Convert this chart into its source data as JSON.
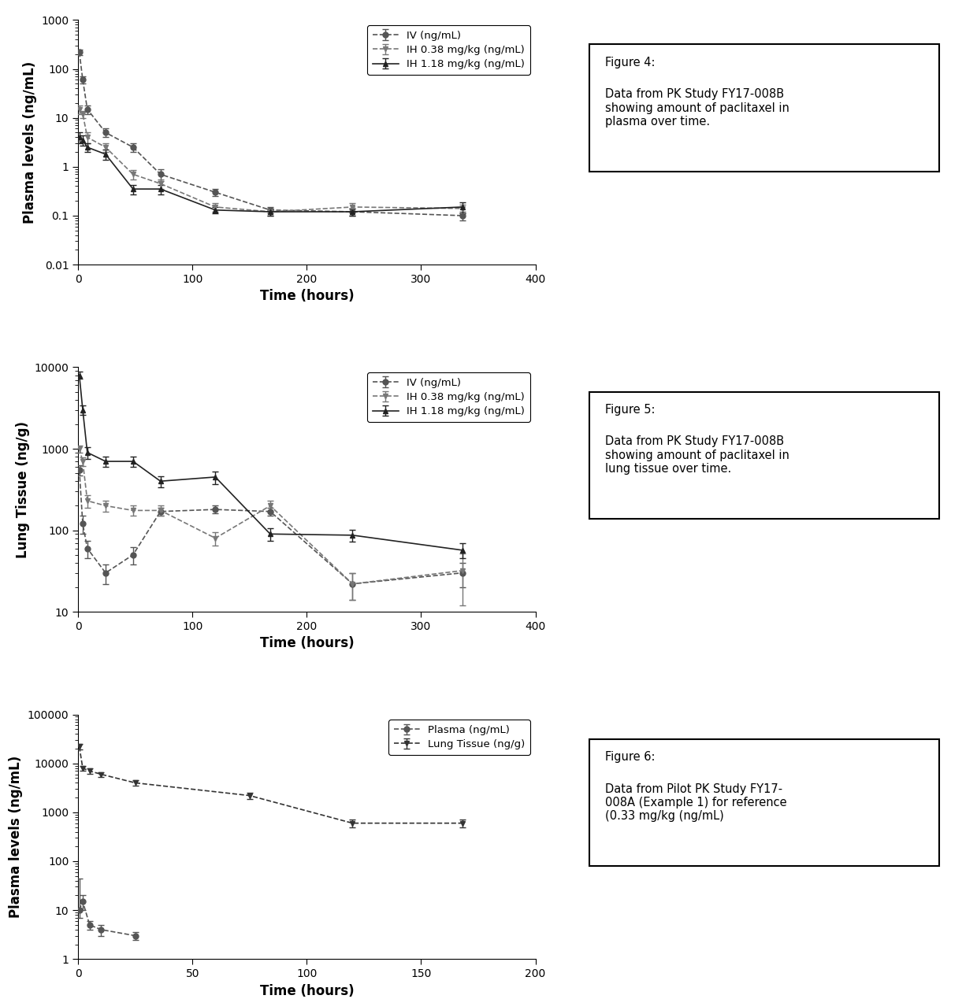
{
  "fig1": {
    "ylabel": "Plasma levels (ng/mL)",
    "xlabel": "Time (hours)",
    "ylim_log": [
      0.01,
      1000
    ],
    "xlim": [
      0,
      400
    ],
    "yticks": [
      0.01,
      0.1,
      1,
      10,
      100,
      1000
    ],
    "ytick_labels": [
      "0.01",
      "0.1",
      "1",
      "10",
      "100",
      "1000"
    ],
    "xticks": [
      0,
      100,
      200,
      300,
      400
    ],
    "series": [
      {
        "label": "IV (ng/mL)",
        "marker": "o",
        "color": "#555555",
        "linestyle": "--",
        "x": [
          1,
          4,
          8,
          24,
          48,
          72,
          120,
          168,
          240,
          336
        ],
        "y": [
          220,
          60,
          15,
          5,
          2.5,
          0.7,
          0.3,
          0.13,
          0.12,
          0.1
        ],
        "yerr_low": [
          30,
          10,
          3,
          1,
          0.5,
          0.2,
          0.05,
          0.02,
          0.02,
          0.02
        ],
        "yerr_high": [
          30,
          10,
          3,
          1,
          0.5,
          0.2,
          0.05,
          0.02,
          0.02,
          0.02
        ]
      },
      {
        "label": "IH 0.38 mg/kg (ng/mL)",
        "marker": "v",
        "color": "#777777",
        "linestyle": "--",
        "x": [
          1,
          4,
          8,
          24,
          48,
          72,
          120,
          168,
          240,
          336
        ],
        "y": [
          15,
          12,
          4,
          2.5,
          0.7,
          0.45,
          0.15,
          0.12,
          0.15,
          0.14
        ],
        "yerr_low": [
          3,
          2,
          1,
          0.5,
          0.15,
          0.1,
          0.03,
          0.02,
          0.03,
          0.03
        ],
        "yerr_high": [
          3,
          2,
          1,
          0.5,
          0.15,
          0.1,
          0.03,
          0.02,
          0.03,
          0.03
        ]
      },
      {
        "label": "IH 1.18 mg/kg (ng/mL)",
        "marker": "^",
        "color": "#222222",
        "linestyle": "-",
        "x": [
          1,
          4,
          8,
          24,
          48,
          72,
          120,
          168,
          240,
          336
        ],
        "y": [
          4,
          3.5,
          2.5,
          1.8,
          0.35,
          0.35,
          0.13,
          0.12,
          0.12,
          0.15
        ],
        "yerr_low": [
          1,
          0.8,
          0.5,
          0.4,
          0.08,
          0.08,
          0.02,
          0.02,
          0.02,
          0.04
        ],
        "yerr_high": [
          1,
          0.8,
          0.5,
          0.4,
          0.08,
          0.08,
          0.02,
          0.02,
          0.02,
          0.04
        ]
      }
    ],
    "caption_title": "Figure 4:",
    "caption_text": "Data from PK Study FY17-008B\nshowing amount of paclitaxel in\nplasma over time."
  },
  "fig2": {
    "ylabel": "Lung Tissue (ng/g)",
    "xlabel": "Time (hours)",
    "ylim_log": [
      10,
      10000
    ],
    "xlim": [
      0,
      400
    ],
    "yticks": [
      10,
      100,
      1000,
      10000
    ],
    "ytick_labels": [
      "10",
      "100",
      "1000",
      "10000"
    ],
    "xticks": [
      0,
      100,
      200,
      300,
      400
    ],
    "series": [
      {
        "label": "IV (ng/mL)",
        "marker": "o",
        "color": "#555555",
        "linestyle": "--",
        "x": [
          1,
          4,
          8,
          24,
          48,
          72,
          120,
          168,
          240,
          336
        ],
        "y": [
          550,
          120,
          60,
          30,
          50,
          170,
          180,
          170,
          22,
          30
        ],
        "yerr_low": [
          80,
          30,
          15,
          8,
          12,
          20,
          20,
          20,
          8,
          10
        ],
        "yerr_high": [
          80,
          30,
          15,
          8,
          12,
          20,
          20,
          20,
          8,
          10
        ]
      },
      {
        "label": "IH 0.38 mg/kg (ng/mL)",
        "marker": "v",
        "color": "#777777",
        "linestyle": "--",
        "x": [
          1,
          4,
          8,
          24,
          48,
          72,
          120,
          168,
          240,
          336
        ],
        "y": [
          1000,
          700,
          230,
          200,
          175,
          175,
          80,
          200,
          22,
          32
        ],
        "yerr_low": [
          100,
          80,
          40,
          30,
          25,
          25,
          15,
          30,
          8,
          20
        ],
        "yerr_high": [
          100,
          80,
          40,
          30,
          25,
          25,
          15,
          30,
          8,
          20
        ]
      },
      {
        "label": "IH 1.18 mg/kg (ng/mL)",
        "marker": "^",
        "color": "#222222",
        "linestyle": "-",
        "x": [
          1,
          4,
          8,
          24,
          48,
          72,
          120,
          168,
          240,
          336
        ],
        "y": [
          8000,
          3000,
          900,
          700,
          700,
          400,
          450,
          90,
          87,
          57
        ],
        "yerr_low": [
          800,
          400,
          150,
          100,
          100,
          60,
          80,
          15,
          15,
          12
        ],
        "yerr_high": [
          800,
          400,
          150,
          100,
          100,
          60,
          80,
          15,
          15,
          12
        ]
      }
    ],
    "caption_title": "Figure 5:",
    "caption_text": "Data from PK Study FY17-008B\nshowing amount of paclitaxel in\nlung tissue over time."
  },
  "fig3": {
    "ylabel": "Plasma levels (ng/mL)",
    "xlabel": "Time (hours)",
    "ylim_log": [
      1,
      100000
    ],
    "xlim": [
      0,
      200
    ],
    "yticks": [
      1,
      10,
      100,
      1000,
      10000,
      100000
    ],
    "ytick_labels": [
      "1",
      "10",
      "100",
      "1000",
      "10000",
      "100000"
    ],
    "xticks": [
      0,
      50,
      100,
      150,
      200
    ],
    "series": [
      {
        "label": "Plasma (ng/mL)",
        "marker": "o",
        "color": "#555555",
        "linestyle": "--",
        "x": [
          0.5,
          2,
          5,
          10,
          25
        ],
        "y": [
          10,
          15,
          5,
          4,
          3
        ],
        "yerr_low": [
          3,
          5,
          1,
          1,
          0.5
        ],
        "yerr_high": [
          35,
          5,
          1,
          1,
          0.5
        ]
      },
      {
        "label": "Lung Tissue (ng/g)",
        "marker": "v",
        "color": "#333333",
        "linestyle": "--",
        "x": [
          0.5,
          2,
          5,
          10,
          25,
          75,
          120,
          168
        ],
        "y": [
          22000,
          8000,
          7000,
          6000,
          4000,
          2200,
          600,
          600
        ],
        "yerr_low": [
          3000,
          1000,
          800,
          700,
          500,
          300,
          100,
          100
        ],
        "yerr_high": [
          3000,
          1000,
          800,
          700,
          500,
          300,
          100,
          100
        ]
      }
    ],
    "caption_title": "Figure 6:",
    "caption_text": "Data from Pilot PK Study FY17-\n008A (Example 1) for reference\n(0.33 mg/kg (ng/mL)"
  },
  "background_color": "#ffffff"
}
